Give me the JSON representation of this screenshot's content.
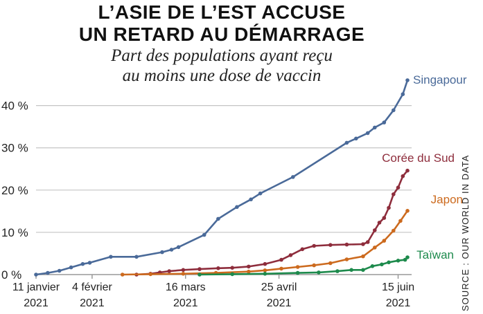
{
  "chart_data": {
    "type": "line",
    "title_lines": [
      "L’ASIE DE L’EST ACCUSE",
      "UN RETARD AU DÉMARRAGE"
    ],
    "subtitle_lines": [
      "Part des populations ayant reçu",
      "au moins une dose de vaccin"
    ],
    "source": "SOURCE : OUR WORLD IN DATA",
    "y_ticks": [
      {
        "value": 0,
        "label": "0 %"
      },
      {
        "value": 10,
        "label": "10 %"
      },
      {
        "value": 20,
        "label": "20 %"
      },
      {
        "value": 30,
        "label": "30 %"
      },
      {
        "value": 40,
        "label": "40 %"
      }
    ],
    "x_ticks": [
      {
        "date": "2021-01-11",
        "line1": "11 janvier",
        "line2": "2021"
      },
      {
        "date": "2021-02-04",
        "line1": "4 février",
        "line2": "2021"
      },
      {
        "date": "2021-03-16",
        "line1": "16 mars",
        "line2": "2021"
      },
      {
        "date": "2021-04-25",
        "line1": "25 avril",
        "line2": "2021"
      },
      {
        "date": "2021-06-15",
        "line1": "15 juin",
        "line2": "2021"
      }
    ],
    "xlim": [
      "2021-01-11",
      "2021-06-19"
    ],
    "ylim": [
      0,
      46
    ],
    "grid": "horizontal",
    "series": [
      {
        "name": "Singapour",
        "color": "#4a6a99",
        "points": [
          [
            "2021-01-11",
            0
          ],
          [
            "2021-01-16",
            0.4
          ],
          [
            "2021-01-21",
            0.9
          ],
          [
            "2021-01-26",
            1.7
          ],
          [
            "2021-01-31",
            2.5
          ],
          [
            "2021-02-03",
            2.8
          ],
          [
            "2021-02-12",
            4.2
          ],
          [
            "2021-02-23",
            4.2
          ],
          [
            "2021-03-06",
            5.3
          ],
          [
            "2021-03-10",
            5.9
          ],
          [
            "2021-03-13",
            6.5
          ],
          [
            "2021-03-24",
            9.4
          ],
          [
            "2021-03-30",
            13.2
          ],
          [
            "2021-04-07",
            16.0
          ],
          [
            "2021-04-13",
            17.8
          ],
          [
            "2021-04-17",
            19.2
          ],
          [
            "2021-05-01",
            23.1
          ],
          [
            "2021-05-24",
            31.2
          ],
          [
            "2021-05-28",
            32.2
          ],
          [
            "2021-06-02",
            33.5
          ],
          [
            "2021-06-05",
            34.8
          ],
          [
            "2021-06-09",
            36.0
          ],
          [
            "2021-06-13",
            38.9
          ],
          [
            "2021-06-17",
            42.7
          ],
          [
            "2021-06-19",
            46.0
          ]
        ]
      },
      {
        "name": "Corée du Sud",
        "color": "#8e2d3c",
        "points": [
          [
            "2021-02-23",
            0
          ],
          [
            "2021-03-01",
            0.2
          ],
          [
            "2021-03-05",
            0.5
          ],
          [
            "2021-03-09",
            0.8
          ],
          [
            "2021-03-15",
            1.1
          ],
          [
            "2021-03-22",
            1.3
          ],
          [
            "2021-03-30",
            1.5
          ],
          [
            "2021-04-05",
            1.6
          ],
          [
            "2021-04-12",
            1.9
          ],
          [
            "2021-04-19",
            2.5
          ],
          [
            "2021-04-26",
            3.5
          ],
          [
            "2021-04-30",
            4.6
          ],
          [
            "2021-05-05",
            6.0
          ],
          [
            "2021-05-10",
            6.8
          ],
          [
            "2021-05-17",
            7.0
          ],
          [
            "2021-05-24",
            7.1
          ],
          [
            "2021-05-31",
            7.2
          ],
          [
            "2021-06-02",
            7.7
          ],
          [
            "2021-06-05",
            10.5
          ],
          [
            "2021-06-07",
            12.3
          ],
          [
            "2021-06-09",
            13.4
          ],
          [
            "2021-06-11",
            15.8
          ],
          [
            "2021-06-13",
            19.0
          ],
          [
            "2021-06-15",
            20.6
          ],
          [
            "2021-06-17",
            23.3
          ],
          [
            "2021-06-19",
            24.6
          ]
        ]
      },
      {
        "name": "Japon",
        "color": "#cc6a1e",
        "points": [
          [
            "2021-02-17",
            0
          ],
          [
            "2021-03-01",
            0.1
          ],
          [
            "2021-03-15",
            0.2
          ],
          [
            "2021-03-29",
            0.4
          ],
          [
            "2021-04-12",
            0.7
          ],
          [
            "2021-04-19",
            1.0
          ],
          [
            "2021-04-26",
            1.4
          ],
          [
            "2021-05-03",
            1.8
          ],
          [
            "2021-05-10",
            2.2
          ],
          [
            "2021-05-17",
            2.7
          ],
          [
            "2021-05-24",
            3.6
          ],
          [
            "2021-05-31",
            4.3
          ],
          [
            "2021-06-05",
            6.4
          ],
          [
            "2021-06-09",
            8.0
          ],
          [
            "2021-06-13",
            10.4
          ],
          [
            "2021-06-16",
            12.7
          ],
          [
            "2021-06-19",
            15.1
          ]
        ]
      },
      {
        "name": "Taïwan",
        "color": "#1d8a4c",
        "points": [
          [
            "2021-03-22",
            0
          ],
          [
            "2021-04-05",
            0.1
          ],
          [
            "2021-04-19",
            0.2
          ],
          [
            "2021-05-03",
            0.4
          ],
          [
            "2021-05-12",
            0.5
          ],
          [
            "2021-05-20",
            0.8
          ],
          [
            "2021-05-26",
            1.1
          ],
          [
            "2021-05-31",
            1.1
          ],
          [
            "2021-06-04",
            2.0
          ],
          [
            "2021-06-08",
            2.4
          ],
          [
            "2021-06-11",
            2.9
          ],
          [
            "2021-06-15",
            3.3
          ],
          [
            "2021-06-18",
            3.5
          ],
          [
            "2021-06-19",
            4.1
          ]
        ]
      }
    ]
  }
}
